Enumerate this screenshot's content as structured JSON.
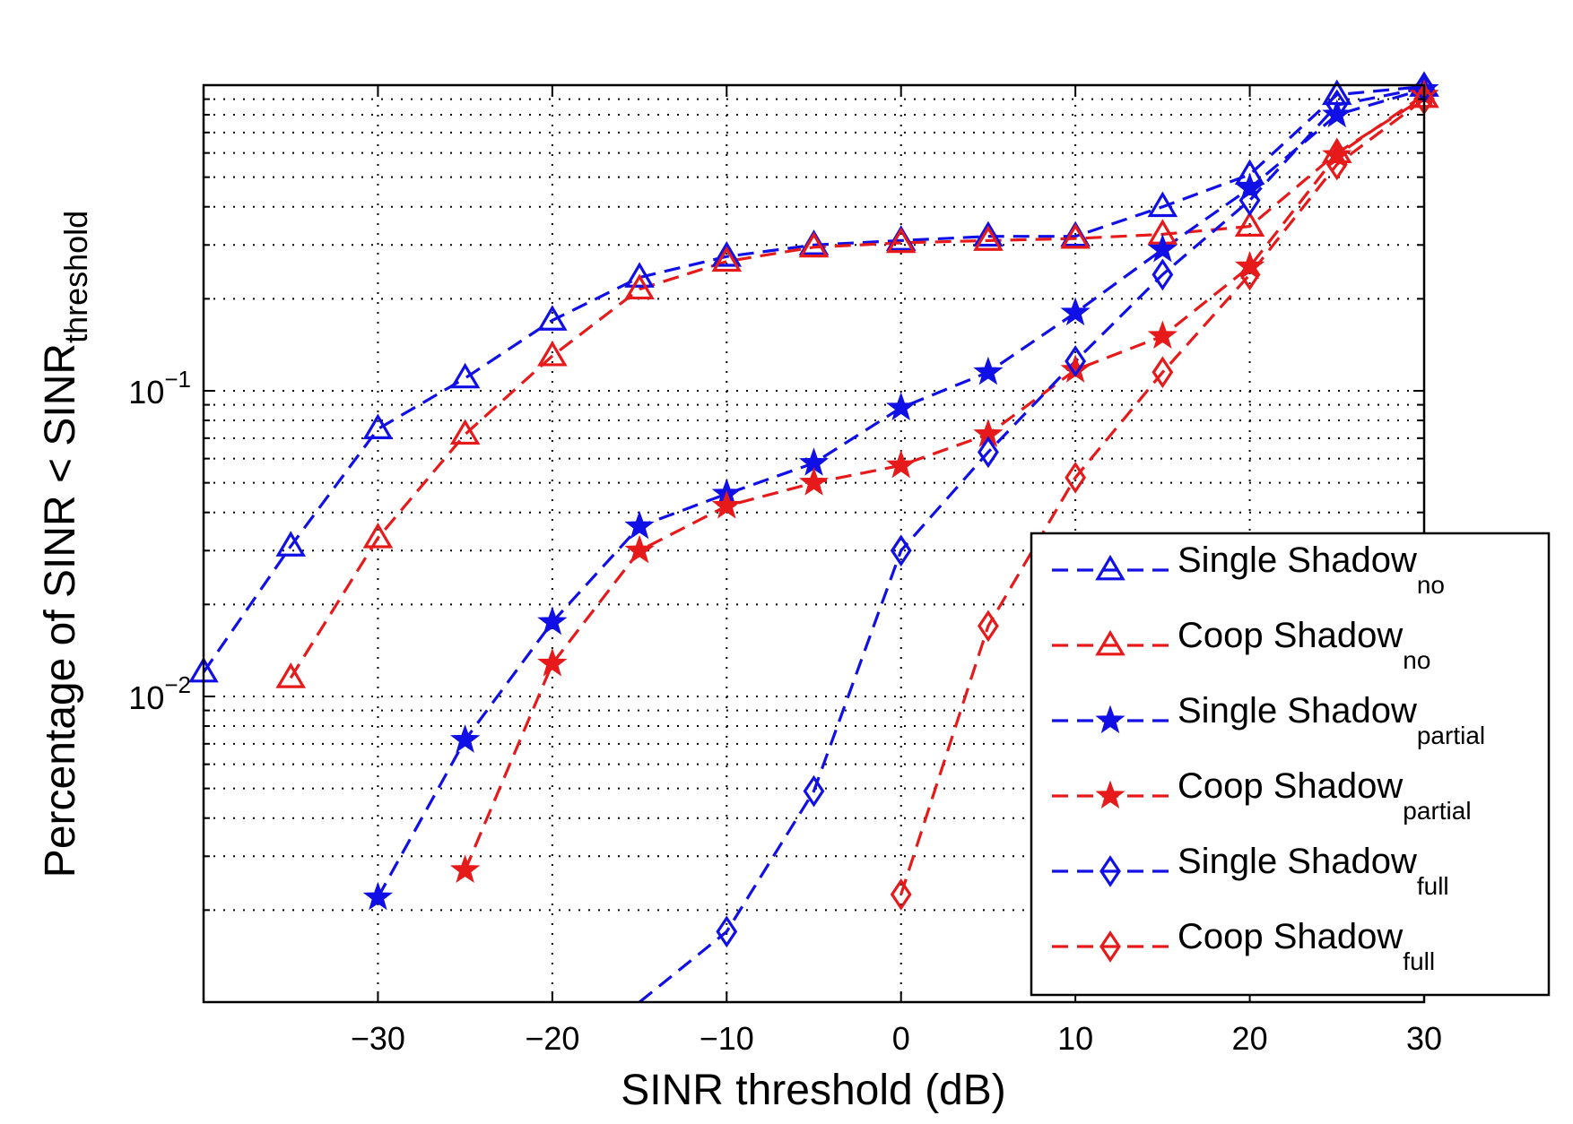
{
  "chart_data": {
    "type": "line",
    "title": "",
    "xlabel": "SINR threshold (dB)",
    "ylabel_main": "Percentage of SINR < SINR",
    "ylabel_sub": "threshold",
    "xlim": [
      -40,
      30
    ],
    "ylim": [
      0.001,
      1
    ],
    "yscale": "log",
    "grid": true,
    "x_ticks": [
      {
        "v": -30,
        "label": "−30"
      },
      {
        "v": -20,
        "label": "−20"
      },
      {
        "v": -10,
        "label": "−10"
      },
      {
        "v": 0,
        "label": "0"
      },
      {
        "v": 10,
        "label": "10"
      },
      {
        "v": 20,
        "label": "20"
      },
      {
        "v": 30,
        "label": "30"
      }
    ],
    "y_ticks": [
      {
        "v": 0.1,
        "base": "10",
        "exp": "−1"
      },
      {
        "v": 0.01,
        "base": "10",
        "exp": "−2"
      }
    ],
    "legend_position": "bottom-right",
    "series": [
      {
        "id": "single-no",
        "name": "Single Shadow",
        "sub": "no",
        "color": "#1010e6",
        "marker": "triangle",
        "points": [
          [
            -40,
            0.012
          ],
          [
            -35,
            0.031
          ],
          [
            -30,
            0.075
          ],
          [
            -25,
            0.11
          ],
          [
            -20,
            0.17
          ],
          [
            -15,
            0.235
          ],
          [
            -10,
            0.275
          ],
          [
            -5,
            0.3
          ],
          [
            0,
            0.31
          ],
          [
            5,
            0.32
          ],
          [
            10,
            0.32
          ],
          [
            15,
            0.4
          ],
          [
            20,
            0.51
          ],
          [
            25,
            0.93
          ],
          [
            30,
            0.99
          ]
        ]
      },
      {
        "id": "coop-no",
        "name": "Coop Shadow",
        "sub": "no",
        "color": "#e61a1a",
        "marker": "triangle",
        "points": [
          [
            -35,
            0.0115
          ],
          [
            -30,
            0.033
          ],
          [
            -25,
            0.072
          ],
          [
            -20,
            0.13
          ],
          [
            -15,
            0.215
          ],
          [
            -10,
            0.265
          ],
          [
            -5,
            0.295
          ],
          [
            0,
            0.305
          ],
          [
            5,
            0.31
          ],
          [
            10,
            0.315
          ],
          [
            15,
            0.325
          ],
          [
            20,
            0.345
          ],
          [
            25,
            0.6
          ],
          [
            30,
            0.91
          ]
        ]
      },
      {
        "id": "single-partial",
        "name": "Single Shadow",
        "sub": "partial",
        "color": "#1010e6",
        "marker": "star",
        "points": [
          [
            -30,
            0.0022
          ],
          [
            -25,
            0.0072
          ],
          [
            -20,
            0.0175
          ],
          [
            -15,
            0.036
          ],
          [
            -10,
            0.046
          ],
          [
            -5,
            0.058
          ],
          [
            0,
            0.088
          ],
          [
            5,
            0.115
          ],
          [
            10,
            0.18
          ],
          [
            15,
            0.29
          ],
          [
            20,
            0.46
          ],
          [
            25,
            0.8
          ],
          [
            30,
            0.97
          ]
        ]
      },
      {
        "id": "coop-partial",
        "name": "Coop Shadow",
        "sub": "partial",
        "color": "#e61a1a",
        "marker": "star",
        "points": [
          [
            -25,
            0.0027
          ],
          [
            -20,
            0.0128
          ],
          [
            -15,
            0.03
          ],
          [
            -10,
            0.042
          ],
          [
            -5,
            0.05
          ],
          [
            0,
            0.057
          ],
          [
            5,
            0.072
          ],
          [
            10,
            0.117
          ],
          [
            15,
            0.151
          ],
          [
            20,
            0.255
          ],
          [
            25,
            0.59
          ],
          [
            30,
            0.93
          ]
        ]
      },
      {
        "id": "single-full",
        "name": "Single Shadow",
        "sub": "full",
        "color": "#1010e6",
        "marker": "diamond",
        "points": [
          [
            -15,
            0.001
          ],
          [
            -10,
            0.0017
          ],
          [
            -5,
            0.0049
          ],
          [
            0,
            0.03
          ],
          [
            5,
            0.063
          ],
          [
            10,
            0.125
          ],
          [
            15,
            0.24
          ],
          [
            20,
            0.42
          ],
          [
            25,
            0.86
          ],
          [
            30,
            0.98
          ]
        ]
      },
      {
        "id": "coop-full",
        "name": "Coop Shadow",
        "sub": "full",
        "color": "#e61a1a",
        "marker": "diamond",
        "points": [
          [
            0,
            0.00225
          ],
          [
            5,
            0.017
          ],
          [
            10,
            0.052
          ],
          [
            15,
            0.115
          ],
          [
            20,
            0.24
          ],
          [
            25,
            0.55
          ],
          [
            30,
            0.9
          ]
        ]
      }
    ]
  }
}
